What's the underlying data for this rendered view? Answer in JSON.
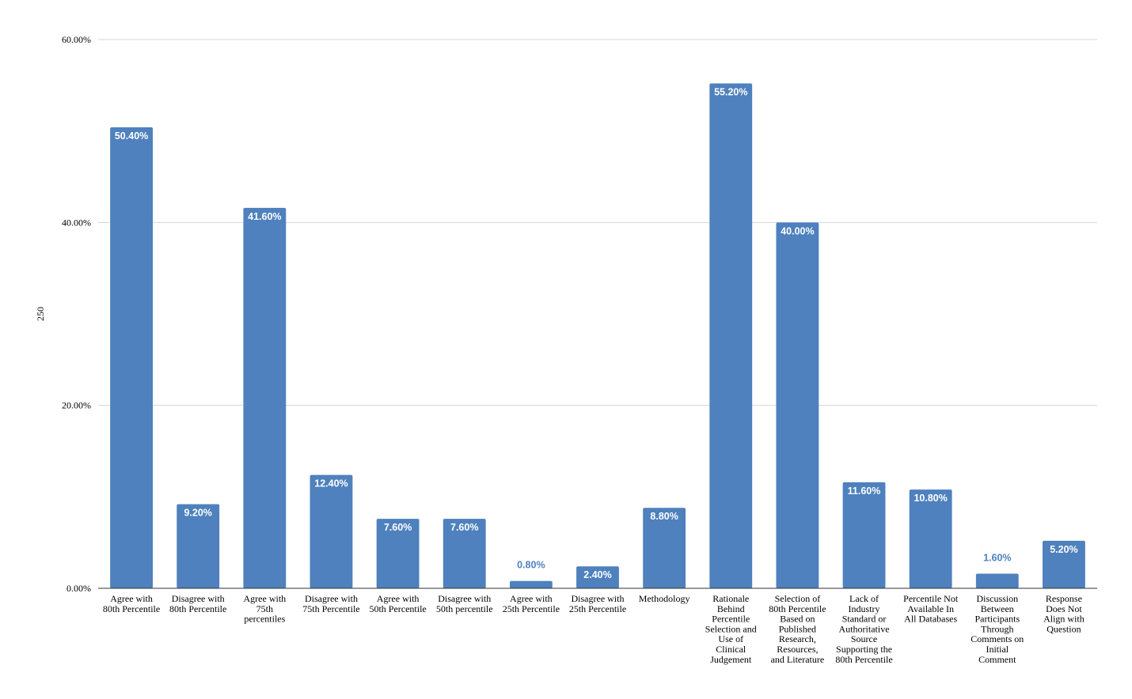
{
  "chart_data": {
    "type": "bar",
    "title": "",
    "xlabel": "",
    "ylabel": "250",
    "ylim": [
      0,
      60
    ],
    "yticks": [
      "0.00%",
      "20.00%",
      "40.00%",
      "60.00%"
    ],
    "ytick_values": [
      0,
      20,
      40,
      60
    ],
    "grid": true,
    "legend": "none",
    "bar_color": "#4e81bd",
    "label_inside_color": "#ffffff",
    "label_outside_color": "#4e81bd",
    "categories": [
      [
        "Agree with",
        "80th Percentile"
      ],
      [
        "Disagree with",
        "80th Percentile"
      ],
      [
        "Agree with",
        "75th",
        "percentiles"
      ],
      [
        "Disagree with",
        "75th Percentile"
      ],
      [
        "Agree with",
        "50th Percentile"
      ],
      [
        "Disagree with",
        "50th percentile"
      ],
      [
        "Agree with",
        "25th Percentile"
      ],
      [
        "Disagree with",
        "25th Percentile"
      ],
      [
        "Methodology"
      ],
      [
        "Rationale",
        "Behind",
        "Percentile",
        "Selection and",
        "Use of",
        "Clinical",
        "Judgement"
      ],
      [
        "Selection of",
        "80th Percentile",
        "Based on",
        "Published",
        "Research,",
        "Resources,",
        "and Literature"
      ],
      [
        "Lack of",
        "Industry",
        "Standard or",
        "Authoritative",
        "Source",
        "Supporting the",
        "80th Percentile"
      ],
      [
        "Percentile Not",
        "Available In",
        "All Databases"
      ],
      [
        "Discussion",
        "Between",
        "Participants",
        "Through",
        "Comments on",
        "Initial",
        "Comment"
      ],
      [
        "Response",
        "Does Not",
        "Align with",
        "Question"
      ]
    ],
    "values": [
      50.4,
      9.2,
      41.6,
      12.4,
      7.6,
      7.6,
      0.8,
      2.4,
      8.8,
      55.2,
      40.0,
      11.6,
      10.8,
      1.6,
      5.2
    ],
    "data_labels": [
      "50.40%",
      "9.20%",
      "41.60%",
      "12.40%",
      "7.60%",
      "7.60%",
      "0.80%",
      "2.40%",
      "8.80%",
      "55.20%",
      "40.00%",
      "11.60%",
      "10.80%",
      "1.60%",
      "5.20%"
    ]
  }
}
